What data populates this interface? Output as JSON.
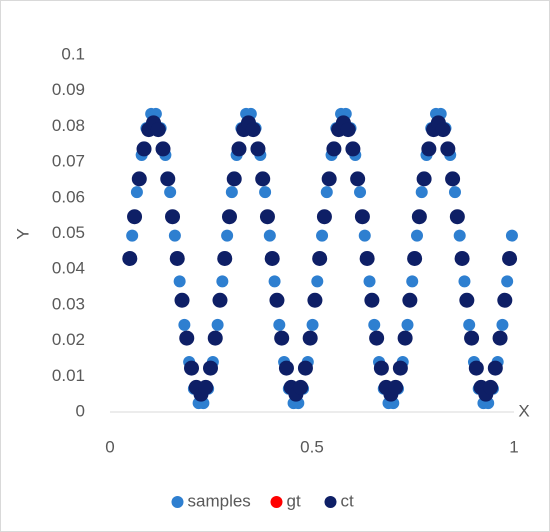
{
  "chart_data": {
    "type": "scatter",
    "x_label": "X",
    "y_label": "Y",
    "xlim": [
      0,
      1
    ],
    "ylim": [
      0,
      0.1
    ],
    "xticks": [
      0,
      0.5,
      1
    ],
    "yticks": [
      0,
      0.01,
      0.02,
      0.03,
      0.04,
      0.05,
      0.06,
      0.07,
      0.08,
      0.09,
      0.1
    ],
    "legend": "bottom",
    "series": [
      {
        "name": "samples",
        "color": "#2e7fd0",
        "radius": 6,
        "x": [
          0.0549,
          0.0666,
          0.0784,
          0.0901,
          0.1019,
          0.1136,
          0.1254,
          0.1371,
          0.1489,
          0.1606,
          0.1724,
          0.1841,
          0.1959,
          0.2076,
          0.2194,
          0.2311,
          0.2429,
          0.2546,
          0.2664,
          0.2781,
          0.2899,
          0.3016,
          0.3134,
          0.3251,
          0.3369,
          0.3486,
          0.3604,
          0.3721,
          0.3839,
          0.3956,
          0.4074,
          0.4191,
          0.4309,
          0.4426,
          0.4544,
          0.4661,
          0.4779,
          0.4896,
          0.5014,
          0.5131,
          0.5249,
          0.5366,
          0.5484,
          0.5601,
          0.5719,
          0.5836,
          0.5954,
          0.6071,
          0.6189,
          0.6306,
          0.6424,
          0.6541,
          0.6659,
          0.6776,
          0.6894,
          0.7011,
          0.7129,
          0.7246,
          0.7364,
          0.7481,
          0.7599,
          0.7716,
          0.7834,
          0.7951,
          0.8069,
          0.8186,
          0.8304,
          0.8421,
          0.8539,
          0.8656,
          0.8774,
          0.8891,
          0.9009,
          0.9126,
          0.9244,
          0.9361,
          0.9479,
          0.9596,
          0.9714,
          0.9831,
          0.9949
        ],
        "values": [
          0.0494,
          0.0616,
          0.072,
          0.0795,
          0.0835,
          0.0835,
          0.0795,
          0.072,
          0.0616,
          0.0494,
          0.0366,
          0.0244,
          0.014,
          0.0065,
          0.0025,
          0.0025,
          0.0065,
          0.014,
          0.0244,
          0.0366,
          0.0494,
          0.0616,
          0.072,
          0.0795,
          0.0835,
          0.0835,
          0.0795,
          0.072,
          0.0616,
          0.0494,
          0.0366,
          0.0244,
          0.014,
          0.0065,
          0.0025,
          0.0025,
          0.0065,
          0.014,
          0.0244,
          0.0366,
          0.0494,
          0.0616,
          0.072,
          0.0795,
          0.0835,
          0.0835,
          0.0795,
          0.072,
          0.0616,
          0.0494,
          0.0366,
          0.0244,
          0.014,
          0.0065,
          0.0025,
          0.0025,
          0.0065,
          0.014,
          0.0244,
          0.0366,
          0.0494,
          0.0616,
          0.072,
          0.0795,
          0.0835,
          0.0835,
          0.0795,
          0.072,
          0.0616,
          0.0494,
          0.0366,
          0.0244,
          0.014,
          0.0065,
          0.0025,
          0.0025,
          0.0065,
          0.014,
          0.0244,
          0.0366,
          0.0494
        ]
      },
      {
        "name": "gt",
        "color": "#ff0000",
        "radius": 7,
        "x": [
          0.049,
          0.06075,
          0.0725,
          0.08425,
          0.096,
          0.10775,
          0.1195,
          0.13125,
          0.143,
          0.15475,
          0.1665,
          0.17825,
          0.19,
          0.20175,
          0.2135,
          0.22525,
          0.237,
          0.24875,
          0.2605,
          0.27225,
          0.284,
          0.29575,
          0.3075,
          0.31925,
          0.331,
          0.34275,
          0.3545,
          0.36625,
          0.378,
          0.38975,
          0.4015,
          0.41325,
          0.425,
          0.43675,
          0.4485,
          0.46025,
          0.472,
          0.48375,
          0.4955,
          0.50725,
          0.519,
          0.53075,
          0.5425,
          0.55425,
          0.566,
          0.57775,
          0.5895,
          0.60125,
          0.613,
          0.62475,
          0.6365,
          0.64825,
          0.66,
          0.67175,
          0.6835,
          0.69525,
          0.707,
          0.71875,
          0.7305,
          0.74225,
          0.754,
          0.76575,
          0.7775,
          0.78925,
          0.801,
          0.81275,
          0.8245,
          0.83625,
          0.848,
          0.85975,
          0.8715,
          0.88325,
          0.895,
          0.90675,
          0.9185,
          0.93025,
          0.942,
          0.95375,
          0.9655,
          0.97725,
          0.989
        ],
        "values": [
          0.043,
          0.0547,
          0.0653,
          0.0737,
          0.0791,
          0.081,
          0.0791,
          0.0737,
          0.0653,
          0.0547,
          0.043,
          0.0313,
          0.0207,
          0.0123,
          0.0069,
          0.005,
          0.0069,
          0.0123,
          0.0207,
          0.0313,
          0.043,
          0.0547,
          0.0653,
          0.0737,
          0.0791,
          0.081,
          0.0791,
          0.0737,
          0.0653,
          0.0547,
          0.043,
          0.0313,
          0.0207,
          0.0123,
          0.0069,
          0.005,
          0.0069,
          0.0123,
          0.0207,
          0.0313,
          0.043,
          0.0547,
          0.0653,
          0.0737,
          0.0791,
          0.081,
          0.0791,
          0.0737,
          0.0653,
          0.0547,
          0.043,
          0.0313,
          0.0207,
          0.0123,
          0.0069,
          0.005,
          0.0069,
          0.0123,
          0.0207,
          0.0313,
          0.043,
          0.0547,
          0.0653,
          0.0737,
          0.0791,
          0.081,
          0.0791,
          0.0737,
          0.0653,
          0.0547,
          0.043,
          0.0313,
          0.0207,
          0.0123,
          0.0069,
          0.005,
          0.0069,
          0.0123,
          0.0207,
          0.0313,
          0.043
        ]
      },
      {
        "name": "ct",
        "color": "#0e1f66",
        "radius": 7.5,
        "x": [
          0.049,
          0.06075,
          0.0725,
          0.08425,
          0.096,
          0.10775,
          0.1195,
          0.13125,
          0.143,
          0.15475,
          0.1665,
          0.17825,
          0.19,
          0.20175,
          0.2135,
          0.22525,
          0.237,
          0.24875,
          0.2605,
          0.27225,
          0.284,
          0.29575,
          0.3075,
          0.31925,
          0.331,
          0.34275,
          0.3545,
          0.36625,
          0.378,
          0.38975,
          0.4015,
          0.41325,
          0.425,
          0.43675,
          0.4485,
          0.46025,
          0.472,
          0.48375,
          0.4955,
          0.50725,
          0.519,
          0.53075,
          0.5425,
          0.55425,
          0.566,
          0.57775,
          0.5895,
          0.60125,
          0.613,
          0.62475,
          0.6365,
          0.64825,
          0.66,
          0.67175,
          0.6835,
          0.69525,
          0.707,
          0.71875,
          0.7305,
          0.74225,
          0.754,
          0.76575,
          0.7775,
          0.78925,
          0.801,
          0.81275,
          0.8245,
          0.83625,
          0.848,
          0.85975,
          0.8715,
          0.88325,
          0.895,
          0.90675,
          0.9185,
          0.93025,
          0.942,
          0.95375,
          0.9655,
          0.97725,
          0.989
        ],
        "values": [
          0.043,
          0.0547,
          0.0653,
          0.0737,
          0.0791,
          0.081,
          0.0791,
          0.0737,
          0.0653,
          0.0547,
          0.043,
          0.0313,
          0.0207,
          0.0123,
          0.0069,
          0.005,
          0.0069,
          0.0123,
          0.0207,
          0.0313,
          0.043,
          0.0547,
          0.0653,
          0.0737,
          0.0791,
          0.081,
          0.0791,
          0.0737,
          0.0653,
          0.0547,
          0.043,
          0.0313,
          0.0207,
          0.0123,
          0.0069,
          0.005,
          0.0069,
          0.0123,
          0.0207,
          0.0313,
          0.043,
          0.0547,
          0.0653,
          0.0737,
          0.0791,
          0.081,
          0.0791,
          0.0737,
          0.0653,
          0.0547,
          0.043,
          0.0313,
          0.0207,
          0.0123,
          0.0069,
          0.005,
          0.0069,
          0.0123,
          0.0207,
          0.0313,
          0.043,
          0.0547,
          0.0653,
          0.0737,
          0.0791,
          0.081,
          0.0791,
          0.0737,
          0.0653,
          0.0547,
          0.043,
          0.0313,
          0.0207,
          0.0123,
          0.0069,
          0.005,
          0.0069,
          0.0123,
          0.0207,
          0.0313,
          0.043
        ]
      }
    ]
  }
}
